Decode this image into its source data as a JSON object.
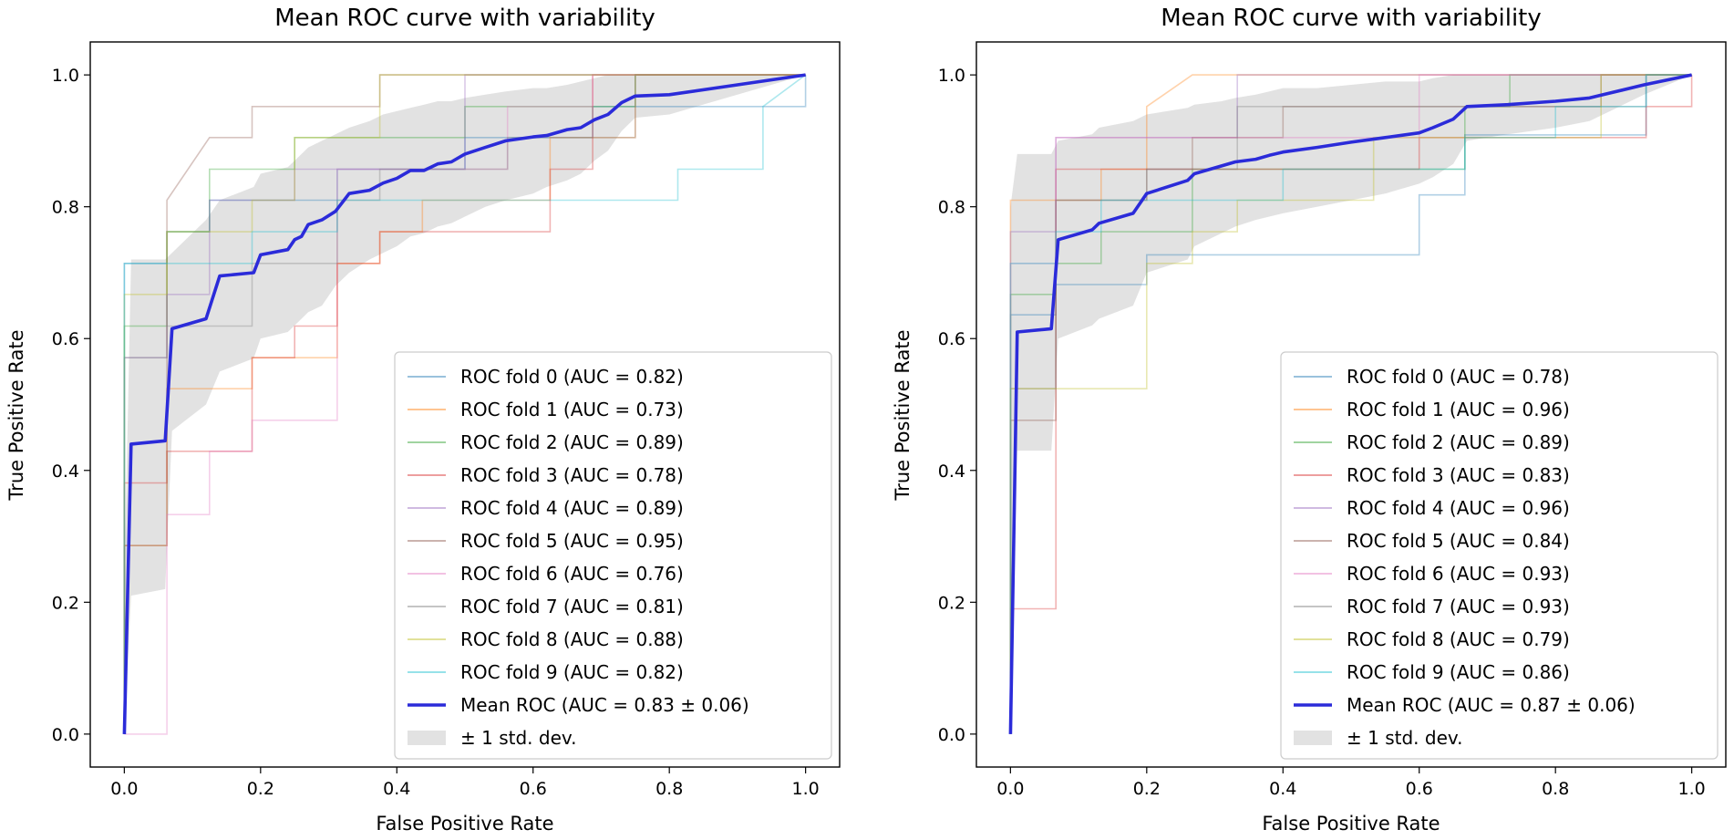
{
  "chart_data": [
    {
      "type": "line",
      "title": "Mean ROC curve with variability",
      "xlabel": "False Positive Rate",
      "ylabel": "True Positive Rate",
      "xlim": [
        -0.05,
        1.05
      ],
      "ylim": [
        -0.05,
        1.05
      ],
      "xticks": [
        "0.0",
        "0.2",
        "0.4",
        "0.6",
        "0.8",
        "1.0"
      ],
      "yticks": [
        "0.0",
        "0.2",
        "0.4",
        "0.6",
        "0.8",
        "1.0"
      ],
      "legend_position": "lower-right",
      "folds": [
        {
          "label": "ROC fold 0 (AUC = 0.82)",
          "color": "#1f77b4",
          "x": [
            0,
            0,
            0.0625,
            0.0625,
            0.125,
            0.125,
            0.3125,
            0.3125,
            0.5,
            0.5,
            0.6875,
            0.6875,
            1,
            1
          ],
          "y": [
            0,
            0.714,
            0.714,
            0.762,
            0.762,
            0.81,
            0.81,
            0.857,
            0.857,
            0.905,
            0.905,
            0.952,
            0.952,
            1
          ]
        },
        {
          "label": "ROC fold 1 (AUC = 0.73)",
          "color": "#ff7f0e",
          "x": [
            0,
            0,
            0.0625,
            0.0625,
            0.1875,
            0.1875,
            0.3125,
            0.3125,
            0.375,
            0.375,
            0.4375,
            0.4375,
            0.625,
            0.625,
            0.75,
            0.75,
            1
          ],
          "y": [
            0,
            0.286,
            0.286,
            0.524,
            0.524,
            0.571,
            0.571,
            0.714,
            0.714,
            0.762,
            0.762,
            0.81,
            0.81,
            0.905,
            0.905,
            1,
            1
          ]
        },
        {
          "label": "ROC fold 2 (AUC = 0.89)",
          "color": "#2ca02c",
          "x": [
            0,
            0,
            0.0625,
            0.0625,
            0.125,
            0.125,
            0.25,
            0.25,
            0.5,
            0.5,
            0.75,
            0.75,
            1
          ],
          "y": [
            0,
            0.619,
            0.619,
            0.762,
            0.762,
            0.857,
            0.857,
            0.905,
            0.905,
            0.952,
            0.952,
            1,
            1
          ]
        },
        {
          "label": "ROC fold 3 (AUC = 0.78)",
          "color": "#d62728",
          "x": [
            0,
            0,
            0.0625,
            0.0625,
            0.1875,
            0.1875,
            0.25,
            0.25,
            0.3125,
            0.3125,
            0.375,
            0.375,
            0.625,
            0.625,
            0.6875,
            0.6875,
            1
          ],
          "y": [
            0,
            0.381,
            0.381,
            0.429,
            0.429,
            0.571,
            0.571,
            0.619,
            0.619,
            0.714,
            0.714,
            0.762,
            0.762,
            0.857,
            0.857,
            1,
            1
          ]
        },
        {
          "label": "ROC fold 4 (AUC = 0.89)",
          "color": "#9467bd",
          "x": [
            0,
            0,
            0.0625,
            0.0625,
            0.125,
            0.125,
            0.25,
            0.25,
            0.5,
            0.5,
            1
          ],
          "y": [
            0,
            0.571,
            0.571,
            0.667,
            0.667,
            0.81,
            0.81,
            0.857,
            0.857,
            1,
            1
          ]
        },
        {
          "label": "ROC fold 5 (AUC = 0.95)",
          "color": "#8c564b",
          "x": [
            0,
            0,
            0.0625,
            0.0625,
            0.0625,
            0.125,
            0.125,
            0.1875,
            0.1875,
            0.375,
            0.375,
            1
          ],
          "y": [
            0,
            0.286,
            0.286,
            0.81,
            0.81,
            0.905,
            0.905,
            0.905,
            0.952,
            0.952,
            1,
            1
          ]
        },
        {
          "label": "ROC fold 6 (AUC = 0.76)",
          "color": "#e377c2",
          "x": [
            0,
            0,
            0.0625,
            0.0625,
            0.125,
            0.125,
            0.1875,
            0.1875,
            0.3125,
            0.3125,
            0.5625,
            0.5625,
            0.6875,
            0.6875,
            1
          ],
          "y": [
            0,
            0,
            0,
            0.333,
            0.333,
            0.429,
            0.429,
            0.476,
            0.476,
            0.857,
            0.857,
            0.952,
            0.952,
            1,
            1
          ]
        },
        {
          "label": "ROC fold 7 (AUC = 0.81)",
          "color": "#7f7f7f",
          "x": [
            0,
            0,
            0.0625,
            0.0625,
            0.1875,
            0.1875,
            0.3125,
            0.3125,
            0.375,
            0.375,
            0.5625,
            0.5625,
            0.75,
            0.75,
            1
          ],
          "y": [
            0,
            0.571,
            0.571,
            0.619,
            0.619,
            0.714,
            0.714,
            0.81,
            0.81,
            0.857,
            0.857,
            0.905,
            0.905,
            1,
            1
          ]
        },
        {
          "label": "ROC fold 8 (AUC = 0.88)",
          "color": "#bcbd22",
          "x": [
            0,
            0,
            0.0625,
            0.0625,
            0.1875,
            0.1875,
            0.25,
            0.25,
            0.375,
            0.375,
            1
          ],
          "y": [
            0,
            0.667,
            0.667,
            0.762,
            0.762,
            0.81,
            0.81,
            0.905,
            0.905,
            1,
            1
          ]
        },
        {
          "label": "ROC fold 9 (AUC = 0.82)",
          "color": "#17becf",
          "x": [
            0,
            0,
            0.1875,
            0.1875,
            0.3125,
            0.3125,
            0.4375,
            0.4375,
            0.625,
            0.625,
            0.8125,
            0.8125,
            0.9375,
            0.9375,
            1
          ],
          "y": [
            0,
            0.714,
            0.714,
            0.762,
            0.762,
            0.81,
            0.81,
            0.81,
            0.81,
            0.81,
            0.81,
            0.857,
            0.857,
            0.952,
            1
          ]
        }
      ],
      "mean": {
        "label": "Mean ROC (AUC = 0.83 ± 0.06)",
        "color": "#2b2bd9",
        "x": [
          0,
          0.01,
          0.06,
          0.07,
          0.12,
          0.14,
          0.19,
          0.2,
          0.24,
          0.25,
          0.26,
          0.27,
          0.29,
          0.31,
          0.33,
          0.36,
          0.38,
          0.4,
          0.42,
          0.44,
          0.46,
          0.48,
          0.5,
          0.53,
          0.56,
          0.6,
          0.62,
          0.65,
          0.67,
          0.69,
          0.71,
          0.73,
          0.75,
          0.8,
          0.9,
          1
        ],
        "y": [
          0,
          0.44,
          0.445,
          0.615,
          0.63,
          0.695,
          0.7,
          0.727,
          0.735,
          0.75,
          0.755,
          0.773,
          0.78,
          0.793,
          0.82,
          0.825,
          0.836,
          0.843,
          0.855,
          0.855,
          0.865,
          0.868,
          0.88,
          0.89,
          0.9,
          0.906,
          0.908,
          0.917,
          0.92,
          0.932,
          0.94,
          0.958,
          0.968,
          0.97,
          0.985,
          1
        ]
      },
      "band": {
        "label": "± 1 std. dev.",
        "color": "#9e9e9e",
        "upper": [
          0.23,
          0.72,
          0.72,
          0.73,
          0.78,
          0.81,
          0.83,
          0.85,
          0.86,
          0.87,
          0.88,
          0.89,
          0.9,
          0.91,
          0.92,
          0.93,
          0.94,
          0.945,
          0.95,
          0.955,
          0.96,
          0.96,
          0.965,
          0.97,
          0.975,
          0.98,
          0.98,
          0.985,
          0.99,
          0.995,
          1,
          1,
          1,
          1,
          1,
          1
        ],
        "lower": [
          0,
          0.21,
          0.22,
          0.46,
          0.5,
          0.55,
          0.57,
          0.6,
          0.61,
          0.62,
          0.63,
          0.64,
          0.65,
          0.68,
          0.7,
          0.72,
          0.73,
          0.74,
          0.755,
          0.76,
          0.77,
          0.775,
          0.785,
          0.8,
          0.81,
          0.82,
          0.83,
          0.84,
          0.85,
          0.87,
          0.885,
          0.915,
          0.935,
          0.94,
          0.97,
          1
        ]
      }
    },
    {
      "type": "line",
      "title": "Mean ROC curve with variability",
      "xlabel": "False Positive Rate",
      "ylabel": "True Positive Rate",
      "xlim": [
        -0.05,
        1.05
      ],
      "ylim": [
        -0.05,
        1.05
      ],
      "xticks": [
        "0.0",
        "0.2",
        "0.4",
        "0.6",
        "0.8",
        "1.0"
      ],
      "yticks": [
        "0.0",
        "0.2",
        "0.4",
        "0.6",
        "0.8",
        "1.0"
      ],
      "legend_position": "lower-right",
      "folds": [
        {
          "label": "ROC fold 0 (AUC = 0.78)",
          "color": "#1f77b4",
          "x": [
            0,
            0,
            0.0667,
            0.0667,
            0.133,
            0.133,
            0.2,
            0.2,
            0.267,
            0.267,
            0.6,
            0.6,
            0.667,
            0.667,
            0.933,
            0.933,
            1
          ],
          "y": [
            0,
            0.636,
            0.636,
            0.682,
            0.682,
            0.682,
            0.682,
            0.727,
            0.727,
            0.727,
            0.727,
            0.818,
            0.818,
            0.909,
            0.909,
            1,
            1
          ]
        },
        {
          "label": "ROC fold 1 (AUC = 0.96)",
          "color": "#ff7f0e",
          "x": [
            0,
            0,
            0.0667,
            0.0667,
            0.133,
            0.133,
            0.2,
            0.2,
            0.267,
            1
          ],
          "y": [
            0,
            0.81,
            0.81,
            0.81,
            0.81,
            0.857,
            0.857,
            0.952,
            1,
            1
          ]
        },
        {
          "label": "ROC fold 2 (AUC = 0.89)",
          "color": "#2ca02c",
          "x": [
            0,
            0,
            0.0667,
            0.0667,
            0.133,
            0.133,
            0.267,
            0.267,
            0.667,
            0.667,
            0.733,
            0.733,
            1
          ],
          "y": [
            0,
            0.667,
            0.667,
            0.714,
            0.714,
            0.762,
            0.762,
            0.857,
            0.857,
            0.952,
            0.952,
            1,
            1
          ]
        },
        {
          "label": "ROC fold 3 (AUC = 0.83)",
          "color": "#d62728",
          "x": [
            0,
            0,
            0.0667,
            0.0667,
            0.2,
            0.2,
            0.333,
            0.333,
            0.6,
            0.6,
            0.667,
            0.667,
            0.933,
            0.933,
            1,
            1
          ],
          "y": [
            0,
            0.19,
            0.19,
            0.857,
            0.857,
            0.857,
            0.857,
            0.857,
            0.857,
            0.905,
            0.905,
            0.905,
            0.905,
            0.952,
            0.952,
            1
          ]
        },
        {
          "label": "ROC fold 4 (AUC = 0.96)",
          "color": "#9467bd",
          "x": [
            0,
            0,
            0.0667,
            0.0667,
            0.2,
            0.2,
            0.333,
            0.333,
            1
          ],
          "y": [
            0,
            0.762,
            0.762,
            0.905,
            0.905,
            0.905,
            0.905,
            1,
            1
          ]
        },
        {
          "label": "ROC fold 5 (AUC = 0.84)",
          "color": "#8c564b",
          "x": [
            0,
            0,
            0.0667,
            0.0667,
            0.2,
            0.2,
            0.267,
            0.267,
            0.4,
            0.4,
            0.867,
            0.867,
            1
          ],
          "y": [
            0,
            0.476,
            0.476,
            0.81,
            0.81,
            0.857,
            0.857,
            0.905,
            0.905,
            0.952,
            0.952,
            1,
            1
          ]
        },
        {
          "label": "ROC fold 6 (AUC = 0.93)",
          "color": "#e377c2",
          "x": [
            0,
            0,
            0.0667,
            0.0667,
            0.2,
            0.2,
            0.6,
            0.6,
            1
          ],
          "y": [
            0,
            0.714,
            0.714,
            0.905,
            0.905,
            0.905,
            0.905,
            1,
            1
          ]
        },
        {
          "label": "ROC fold 7 (AUC = 0.93)",
          "color": "#7f7f7f",
          "x": [
            0,
            0,
            0.0667,
            0.0667,
            0.2,
            0.2,
            0.333,
            0.333,
            0.933,
            0.933,
            1
          ],
          "y": [
            0,
            0.524,
            0.524,
            0.81,
            0.81,
            0.857,
            0.857,
            0.952,
            0.952,
            1,
            1
          ]
        },
        {
          "label": "ROC fold 8 (AUC = 0.79)",
          "color": "#bcbd22",
          "x": [
            0,
            0,
            0.0667,
            0.0667,
            0.2,
            0.2,
            0.267,
            0.267,
            0.333,
            0.333,
            0.533,
            0.533,
            0.667,
            0.667,
            0.867,
            0.867,
            1
          ],
          "y": [
            0,
            0.524,
            0.524,
            0.524,
            0.524,
            0.714,
            0.714,
            0.762,
            0.762,
            0.81,
            0.81,
            0.905,
            0.905,
            0.905,
            0.905,
            1,
            1
          ]
        },
        {
          "label": "ROC fold 9 (AUC = 0.86)",
          "color": "#17becf",
          "x": [
            0,
            0,
            0.0667,
            0.0667,
            0.133,
            0.133,
            0.4,
            0.4,
            0.667,
            0.667,
            0.8,
            0.8,
            0.933,
            0.933,
            1
          ],
          "y": [
            0,
            0.714,
            0.714,
            0.762,
            0.762,
            0.81,
            0.81,
            0.857,
            0.857,
            0.905,
            0.905,
            0.952,
            0.952,
            1,
            1
          ]
        }
      ],
      "mean": {
        "label": "Mean ROC (AUC = 0.87 ± 0.06)",
        "color": "#2b2bd9",
        "x": [
          0,
          0.01,
          0.06,
          0.07,
          0.12,
          0.13,
          0.18,
          0.2,
          0.26,
          0.27,
          0.31,
          0.33,
          0.36,
          0.38,
          0.4,
          0.45,
          0.5,
          0.55,
          0.6,
          0.62,
          0.65,
          0.67,
          0.73,
          0.8,
          0.85,
          0.87,
          0.93,
          1
        ],
        "y": [
          0,
          0.61,
          0.615,
          0.75,
          0.765,
          0.775,
          0.79,
          0.82,
          0.84,
          0.85,
          0.862,
          0.868,
          0.872,
          0.878,
          0.883,
          0.89,
          0.898,
          0.905,
          0.912,
          0.92,
          0.933,
          0.952,
          0.955,
          0.96,
          0.965,
          0.97,
          0.985,
          1
        ]
      },
      "band": {
        "label": "± 1 std. dev.",
        "color": "#9e9e9e",
        "upper": [
          0.8,
          0.88,
          0.88,
          0.9,
          0.91,
          0.92,
          0.93,
          0.94,
          0.95,
          0.955,
          0.96,
          0.965,
          0.97,
          0.975,
          0.98,
          0.98,
          0.985,
          0.99,
          0.99,
          0.995,
          1,
          1,
          1,
          1,
          1,
          1,
          1,
          1
        ],
        "lower": [
          0,
          0.43,
          0.43,
          0.6,
          0.62,
          0.63,
          0.65,
          0.7,
          0.72,
          0.74,
          0.76,
          0.77,
          0.78,
          0.785,
          0.79,
          0.8,
          0.81,
          0.82,
          0.835,
          0.845,
          0.865,
          0.9,
          0.91,
          0.92,
          0.93,
          0.94,
          0.97,
          1
        ]
      }
    }
  ]
}
